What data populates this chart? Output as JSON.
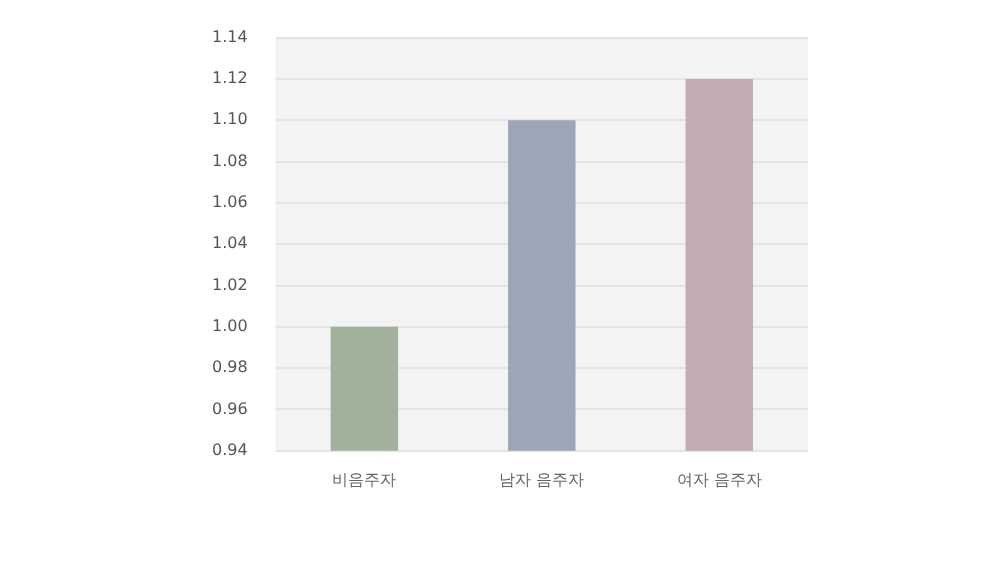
{
  "chart_data": {
    "type": "bar",
    "categories": [
      "비음주자",
      "남자 음주자",
      "여자 음주자"
    ],
    "values": [
      1.0,
      1.1,
      1.12
    ],
    "colors": [
      "#a1b19c",
      "#9ca6b6",
      "#c1abb5"
    ],
    "ylim": [
      0.94,
      1.14
    ],
    "yticks": [
      {
        "value": 0.94,
        "label": "0.94"
      },
      {
        "value": 0.96,
        "label": "0.96"
      },
      {
        "value": 0.98,
        "label": "0.98"
      },
      {
        "value": 1.0,
        "label": "1.00"
      },
      {
        "value": 1.02,
        "label": "1.02"
      },
      {
        "value": 1.04,
        "label": "1.04"
      },
      {
        "value": 1.06,
        "label": "1.06"
      },
      {
        "value": 1.08,
        "label": "1.08"
      },
      {
        "value": 1.1,
        "label": "1.10"
      },
      {
        "value": 1.12,
        "label": "1.12"
      },
      {
        "value": 1.14,
        "label": "1.14"
      }
    ],
    "grid": "y"
  }
}
